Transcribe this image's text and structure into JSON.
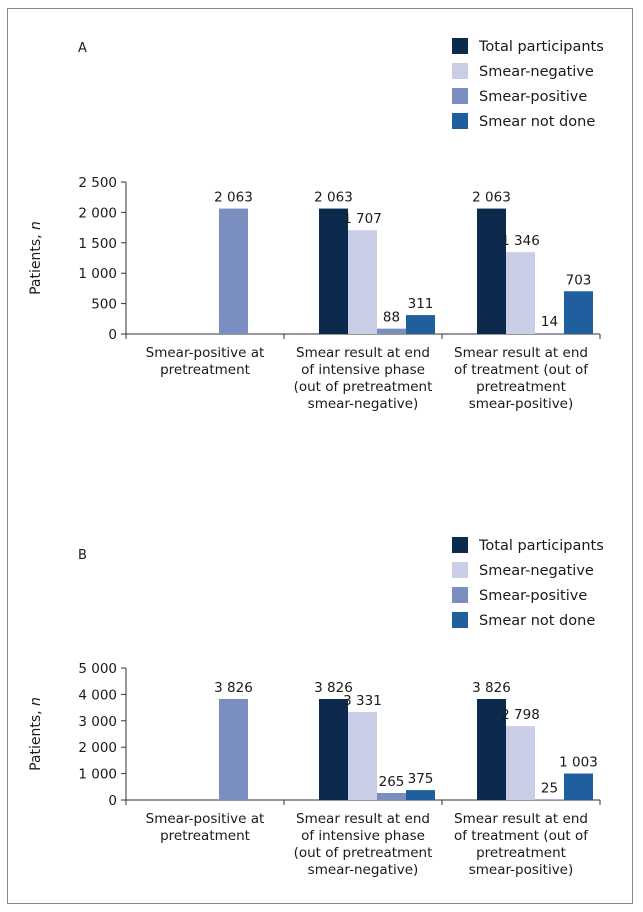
{
  "chart_data": [
    {
      "type": "bar",
      "panel_label": "A",
      "ylabel": "Patients, n",
      "ylim": [
        0,
        2500
      ],
      "yticks": [
        0,
        500,
        1000,
        1500,
        2000,
        2500
      ],
      "ytick_labels": [
        "0",
        "500",
        "1 000",
        "1 500",
        "2 000",
        "2 500"
      ],
      "categories": [
        [
          "Smear-positive at",
          "pretreatment"
        ],
        [
          "Smear result at end",
          "of intensive phase",
          "(out of pretreatment",
          "smear-negative)"
        ],
        [
          "Smear result at end",
          "of treatment (out of",
          "pretreatment",
          "smear-positive)"
        ]
      ],
      "legend_position": "top-right",
      "series": [
        {
          "name": "Total participants",
          "color": "#0b2a4e",
          "values": [
            null,
            2063,
            2063
          ],
          "labels": [
            null,
            "2 063",
            "2 063"
          ]
        },
        {
          "name": "Smear-negative",
          "color": "#c9cde6",
          "values": [
            null,
            1707,
            1346
          ],
          "labels": [
            null,
            "1 707",
            "1 346"
          ]
        },
        {
          "name": "Smear-positive",
          "color": "#7b8ec0",
          "values": [
            2063,
            88,
            14
          ],
          "labels": [
            "2 063",
            "88",
            "14"
          ]
        },
        {
          "name": "Smear not done",
          "color": "#1f5f9e",
          "values": [
            null,
            311,
            703
          ],
          "labels": [
            null,
            "311",
            "703"
          ]
        }
      ]
    },
    {
      "type": "bar",
      "panel_label": "B",
      "ylabel": "Patients, n",
      "ylim": [
        0,
        5000
      ],
      "yticks": [
        0,
        1000,
        2000,
        3000,
        4000,
        5000
      ],
      "ytick_labels": [
        "0",
        "1 000",
        "2 000",
        "3 000",
        "4 000",
        "5 000"
      ],
      "categories": [
        [
          "Smear-positive at",
          "pretreatment"
        ],
        [
          "Smear result at end",
          "of intensive phase",
          "(out of pretreatment",
          "smear-negative)"
        ],
        [
          "Smear result at end",
          "of treatment (out of",
          "pretreatment",
          "smear-positive)"
        ]
      ],
      "legend_position": "top-right",
      "series": [
        {
          "name": "Total participants",
          "color": "#0b2a4e",
          "values": [
            null,
            3826,
            3826
          ],
          "labels": [
            null,
            "3 826",
            "3 826"
          ]
        },
        {
          "name": "Smear-negative",
          "color": "#c9cde6",
          "values": [
            null,
            3331,
            2798
          ],
          "labels": [
            null,
            "3 331",
            "2 798"
          ]
        },
        {
          "name": "Smear-positive",
          "color": "#7b8ec0",
          "values": [
            3826,
            265,
            25
          ],
          "labels": [
            "3 826",
            "265",
            "25"
          ]
        },
        {
          "name": "Smear not done",
          "color": "#1f5f9e",
          "values": [
            null,
            375,
            1003
          ],
          "labels": [
            null,
            "375",
            "1 003"
          ]
        }
      ]
    }
  ]
}
